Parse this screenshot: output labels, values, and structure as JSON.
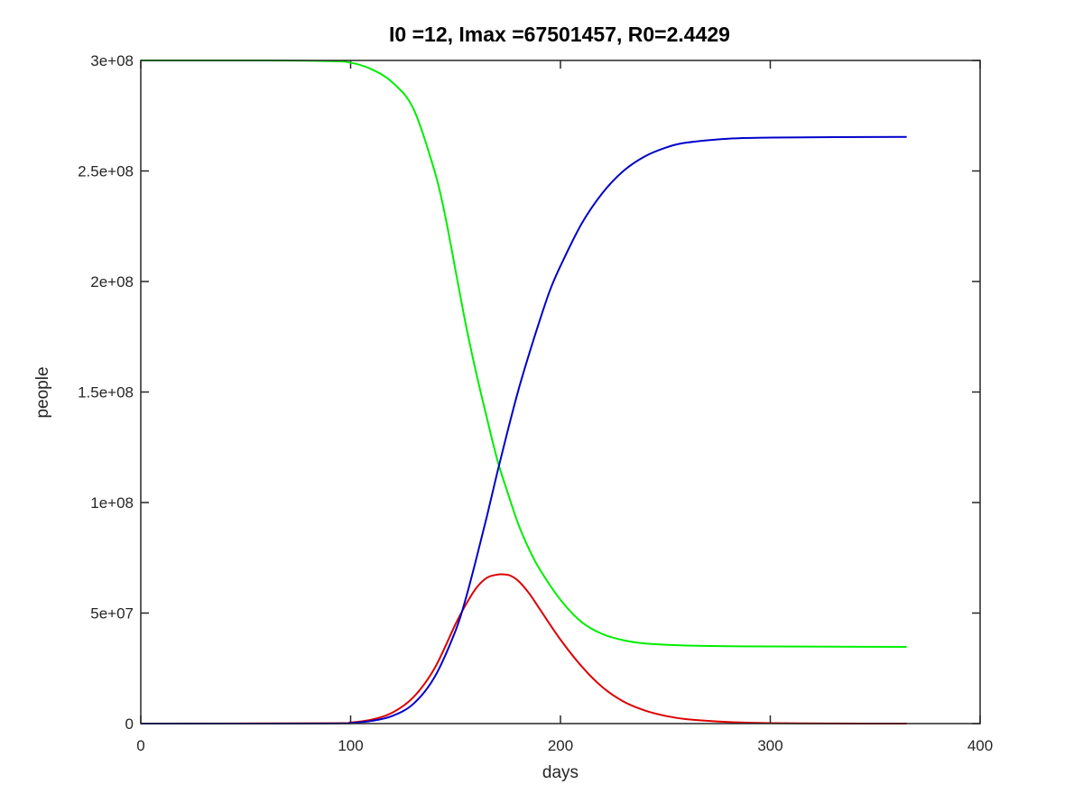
{
  "chart_data": {
    "type": "line",
    "title": "I0 =12, Imax =67501457, R0=2.4429",
    "xlabel": "days",
    "ylabel": "people",
    "xlim": [
      0,
      400
    ],
    "ylim": [
      0,
      300000000
    ],
    "xticks": [
      0,
      100,
      200,
      300,
      400
    ],
    "xtick_labels": [
      "0",
      "100",
      "200",
      "300",
      "400"
    ],
    "yticks": [
      0,
      50000000,
      100000000,
      150000000,
      200000000,
      250000000,
      300000000
    ],
    "ytick_labels": [
      "0",
      "5e+07",
      "1e+08",
      "1.5e+08",
      "2e+08",
      "2.5e+08",
      "3e+08"
    ],
    "grid": false,
    "series": [
      {
        "color": "#00ee00",
        "x": [
          0,
          60,
          90,
          100,
          110,
          120,
          130,
          140,
          145,
          150,
          155,
          160,
          165,
          170,
          175,
          180,
          185,
          190,
          200,
          210,
          220,
          230,
          240,
          260,
          280,
          300,
          330,
          365
        ],
        "y": [
          300000000,
          300000000,
          299700000,
          299000000,
          296000000,
          290000000,
          278000000,
          250000000,
          230000000,
          205000000,
          180000000,
          158000000,
          138000000,
          119000000,
          104000000,
          90000000,
          79000000,
          70000000,
          56000000,
          46000000,
          40500000,
          37700000,
          36300000,
          35300000,
          35000000,
          34900000,
          34800000,
          34700000
        ]
      },
      {
        "color": "#dd0000",
        "x": [
          0,
          90,
          100,
          110,
          120,
          130,
          140,
          150,
          155,
          160,
          165,
          170,
          173,
          176,
          180,
          185,
          190,
          200,
          210,
          220,
          230,
          240,
          250,
          260,
          280,
          300,
          330,
          365
        ],
        "y": [
          0,
          150000,
          500000,
          1800000,
          5000000,
          12000000,
          25000000,
          45000000,
          54000000,
          61500000,
          66000000,
          67400000,
          67500000,
          67000000,
          64500000,
          59000000,
          52000000,
          38000000,
          26000000,
          16500000,
          10000000,
          6000000,
          3500000,
          2000000,
          700000,
          200000,
          50000,
          10000
        ]
      },
      {
        "color": "#0000cc",
        "x": [
          0,
          90,
          100,
          110,
          120,
          130,
          140,
          150,
          155,
          160,
          165,
          170,
          175,
          180,
          185,
          190,
          195,
          200,
          210,
          220,
          230,
          240,
          250,
          260,
          280,
          300,
          330,
          365
        ],
        "y": [
          0,
          50000,
          300000,
          1200000,
          3500000,
          9000000,
          21000000,
          42000000,
          57000000,
          75000000,
          94000000,
          114000000,
          133000000,
          151000000,
          167000000,
          182000000,
          196000000,
          207000000,
          226000000,
          240000000,
          250000000,
          256500000,
          260500000,
          262800000,
          264600000,
          265100000,
          265300000,
          265400000
        ]
      }
    ]
  }
}
